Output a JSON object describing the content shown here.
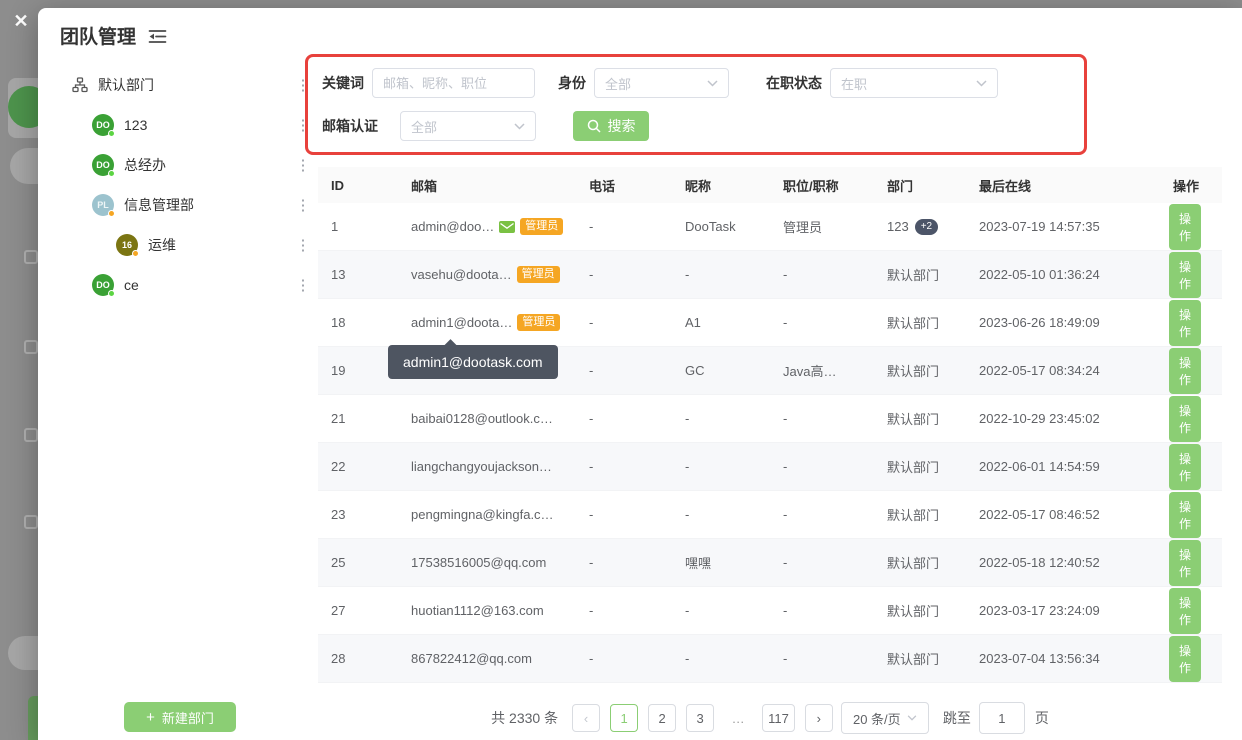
{
  "background": {
    "close_icon": "✕"
  },
  "modal": {
    "title": "团队管理",
    "sidebar": {
      "root_label": "默认部门",
      "more_icon": "⋮",
      "items": [
        {
          "label": "123",
          "avatar_text": "DO",
          "avatar_color": "#3aa135",
          "avatar_text_color": "#ffffff",
          "dot_color": "#5cd443",
          "indent": false
        },
        {
          "label": "总经办",
          "avatar_text": "DO",
          "avatar_color": "#3aa135",
          "avatar_text_color": "#ffffff",
          "dot_color": "#5cd443",
          "indent": false
        },
        {
          "label": "信息管理部",
          "avatar_text": "PL",
          "avatar_color": "#9cc3ce",
          "avatar_text_color": "#eef6f7",
          "dot_color": "#f5a623",
          "indent": false
        },
        {
          "label": "运维",
          "avatar_text": "16",
          "avatar_color": "#7b7512",
          "avatar_text_color": "#ffffff",
          "dot_color": "#f5a623",
          "indent": true
        },
        {
          "label": "ce",
          "avatar_text": "DO",
          "avatar_color": "#3aa135",
          "avatar_text_color": "#ffffff",
          "dot_color": "#5cd443",
          "indent": false
        }
      ],
      "new_department_label": "新建部门",
      "plus_icon": "+"
    },
    "filters": {
      "keyword_label": "关键词",
      "keyword_placeholder": "邮箱、昵称、职位",
      "identity_label": "身份",
      "identity_value": "全部",
      "status_label": "在职状态",
      "status_value": "在职",
      "verify_label": "邮箱认证",
      "verify_value": "全部",
      "search_button_label": "搜索"
    },
    "table": {
      "headers": [
        "ID",
        "邮箱",
        "电话",
        "昵称",
        "职位/职称",
        "部门",
        "最后在线",
        "操作"
      ],
      "admin_badge_label": "管理员",
      "action_button_label": "操作",
      "tooltip_text": "admin1@dootask.com",
      "rows": [
        {
          "id": "1",
          "email": "admin@doo…",
          "mail_icon": true,
          "admin": true,
          "phone": "-",
          "nickname": "DooTask",
          "title": "管理员",
          "department": "123",
          "department_extra": "+2",
          "last_online": "2023-07-19 14:57:35",
          "striped": false
        },
        {
          "id": "13",
          "email": "vasehu@doota…",
          "admin": true,
          "phone": "-",
          "nickname": "-",
          "title": "-",
          "department": "默认部门",
          "last_online": "2022-05-10 01:36:24",
          "striped": true
        },
        {
          "id": "18",
          "email": "admin1@doota…",
          "admin": true,
          "phone": "-",
          "nickname": "A1",
          "title": "-",
          "department": "默认部门",
          "last_online": "2023-06-26 18:49:09",
          "striped": false
        },
        {
          "id": "19",
          "email": "",
          "phone": "-",
          "nickname": "GC",
          "title": "Java高…",
          "department": "默认部门",
          "last_online": "2022-05-17 08:34:24",
          "striped": true
        },
        {
          "id": "21",
          "email": "baibai0128@outlook.c…",
          "phone": "-",
          "nickname": "-",
          "title": "-",
          "department": "默认部门",
          "last_online": "2022-10-29 23:45:02",
          "striped": false
        },
        {
          "id": "22",
          "email": "liangchangyoujackson…",
          "phone": "-",
          "nickname": "-",
          "title": "-",
          "department": "默认部门",
          "last_online": "2022-06-01 14:54:59",
          "striped": true
        },
        {
          "id": "23",
          "email": "pengmingna@kingfa.c…",
          "phone": "-",
          "nickname": "-",
          "title": "-",
          "department": "默认部门",
          "last_online": "2022-05-17 08:46:52",
          "striped": false
        },
        {
          "id": "25",
          "email": "17538516005@qq.com",
          "phone": "-",
          "nickname": "嘿嘿",
          "title": "-",
          "department": "默认部门",
          "last_online": "2022-05-18 12:40:52",
          "striped": true
        },
        {
          "id": "27",
          "email": "huotian1112@163.com",
          "phone": "-",
          "nickname": "-",
          "title": "-",
          "department": "默认部门",
          "last_online": "2023-03-17 23:24:09",
          "striped": false
        },
        {
          "id": "28",
          "email": "867822412@qq.com",
          "phone": "-",
          "nickname": "-",
          "title": "-",
          "department": "默认部门",
          "last_online": "2023-07-04 13:56:34",
          "striped": true
        }
      ]
    },
    "pagination": {
      "total_text": "共 2330 条",
      "prev_icon": "‹",
      "next_icon": "›",
      "pages": [
        "1",
        "2",
        "3",
        "…",
        "117"
      ],
      "active_page": "1",
      "page_size_value": "20 条/页",
      "jump_label": "跳至",
      "jump_value": "1",
      "jump_suffix": "页"
    }
  },
  "colors": {
    "accent_green": "#8bce74",
    "badge_orange": "#f5a623",
    "highlight_red": "#e8413c",
    "tooltip_bg": "#4e5561",
    "dept_extra_bg": "#4c5568"
  }
}
